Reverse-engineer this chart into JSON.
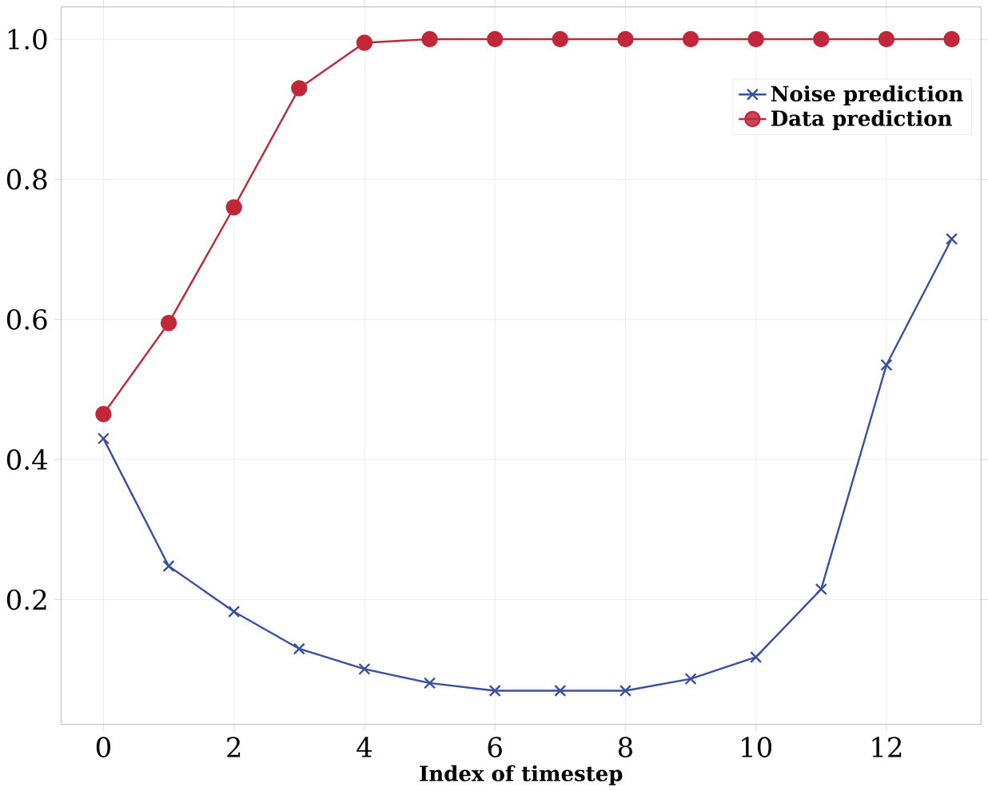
{
  "chart_data": {
    "type": "line",
    "xlabel": "Index of timestep",
    "x": [
      0,
      1,
      2,
      3,
      4,
      5,
      6,
      7,
      8,
      9,
      10,
      11,
      12,
      13
    ],
    "series": [
      {
        "name": "Noise prediction",
        "color": "#3a4fa0",
        "marker": "cross",
        "values": [
          0.43,
          0.248,
          0.183,
          0.13,
          0.101,
          0.081,
          0.07,
          0.07,
          0.07,
          0.087,
          0.118,
          0.215,
          0.535,
          0.715
        ]
      },
      {
        "name": "Data prediction",
        "color": "#c0283a",
        "marker": "circle",
        "values": [
          0.465,
          0.595,
          0.76,
          0.93,
          0.995,
          1.0,
          1.0,
          1.0,
          1.0,
          1.0,
          1.0,
          1.0,
          1.0,
          1.0
        ]
      }
    ],
    "xlim": [
      -0.65,
      13.45
    ],
    "ylim": [
      0.022,
      1.046
    ],
    "xticks": [
      0,
      2,
      4,
      6,
      8,
      10,
      12
    ],
    "yticks": [
      {
        "value": 0.2,
        "label": "0.2"
      },
      {
        "value": 0.4,
        "label": "0.4"
      },
      {
        "value": 0.6,
        "label": "0.6"
      },
      {
        "value": 0.8,
        "label": "0.8"
      },
      {
        "value": 1.0,
        "label": "1.0"
      }
    ],
    "grid": true,
    "legend": "top right",
    "line_style": "solid"
  }
}
